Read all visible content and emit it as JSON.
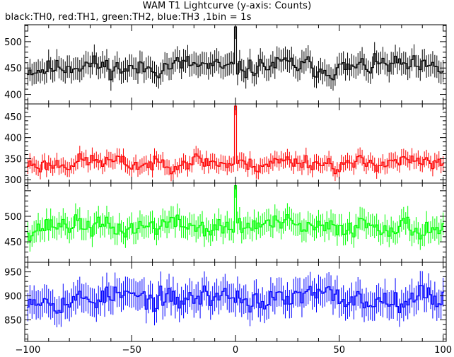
{
  "title": "WAM T1 Lightcurve (y-axis: Counts)",
  "subtitle": "black:TH0, red:TH1, green:TH2, blue:TH3 ,1bin = 1s",
  "chart_data": {
    "type": "line",
    "x": {
      "min": -100,
      "max": 100,
      "step": 1,
      "ticks": [
        -100,
        -50,
        0,
        50,
        100
      ]
    },
    "panels": [
      {
        "name": "TH0",
        "color": "#000000",
        "ylim": [
          382,
          532
        ],
        "yticks": [
          400,
          450,
          500
        ],
        "baseline": 452,
        "noise": 18,
        "peak": {
          "x": 0,
          "y": 528
        },
        "seed": 11
      },
      {
        "name": "TH1",
        "color": "#ff0000",
        "ylim": [
          292,
          480
        ],
        "yticks": [
          300,
          350,
          400,
          450
        ],
        "baseline": 340,
        "noise": 19,
        "peak": {
          "x": 0,
          "y": 475
        },
        "seed": 23
      },
      {
        "name": "TH2",
        "color": "#00ff00",
        "ylim": [
          410,
          565
        ],
        "yticks": [
          450,
          500
        ],
        "baseline": 480,
        "noise": 20,
        "peak": {
          "x": 0,
          "y": 560
        },
        "seed": 37
      },
      {
        "name": "TH3",
        "color": "#0000ff",
        "ylim": [
          805,
          970
        ],
        "yticks": [
          850,
          900,
          950
        ],
        "baseline": 895,
        "noise": 24,
        "peak": null,
        "seed": 53
      }
    ]
  }
}
